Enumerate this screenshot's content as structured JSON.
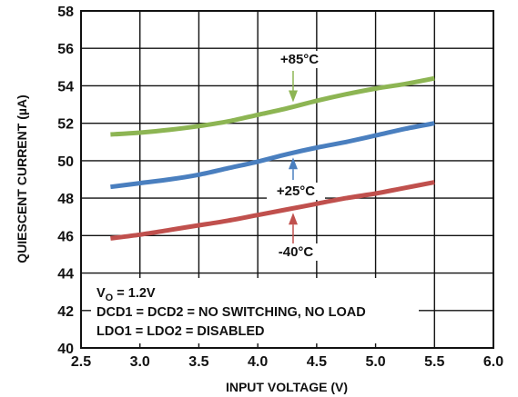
{
  "chart_data": {
    "type": "line",
    "xlabel": "INPUT VOLTAGE (V)",
    "ylabel": "QUIESCENT CURRENT (µA)",
    "xlim": [
      2.5,
      6.0
    ],
    "ylim": [
      40,
      58
    ],
    "x_ticks": [
      "2.5",
      "3.0",
      "3.5",
      "4.0",
      "4.5",
      "5.0",
      "5.5",
      "6.0"
    ],
    "y_ticks": [
      "40",
      "42",
      "44",
      "46",
      "48",
      "50",
      "52",
      "54",
      "56",
      "58"
    ],
    "grid": true,
    "series": [
      {
        "name": "+85°C",
        "color": "#8db553",
        "points": [
          [
            2.75,
            51.4
          ],
          [
            3.0,
            51.5
          ],
          [
            3.25,
            51.65
          ],
          [
            3.5,
            51.85
          ],
          [
            3.75,
            52.1
          ],
          [
            4.0,
            52.45
          ],
          [
            4.25,
            52.8
          ],
          [
            4.5,
            53.2
          ],
          [
            4.75,
            53.55
          ],
          [
            5.0,
            53.85
          ],
          [
            5.25,
            54.1
          ],
          [
            5.5,
            54.4
          ]
        ]
      },
      {
        "name": "+25°C",
        "color": "#4a7fbf",
        "points": [
          [
            2.75,
            48.6
          ],
          [
            3.0,
            48.8
          ],
          [
            3.25,
            49.0
          ],
          [
            3.5,
            49.25
          ],
          [
            3.75,
            49.6
          ],
          [
            4.0,
            49.95
          ],
          [
            4.25,
            50.35
          ],
          [
            4.5,
            50.7
          ],
          [
            4.75,
            51.0
          ],
          [
            5.0,
            51.35
          ],
          [
            5.25,
            51.7
          ],
          [
            5.5,
            52.0
          ]
        ]
      },
      {
        "name": "-40°C",
        "color": "#c0504d",
        "points": [
          [
            2.75,
            45.85
          ],
          [
            3.0,
            46.05
          ],
          [
            3.25,
            46.3
          ],
          [
            3.5,
            46.55
          ],
          [
            3.75,
            46.8
          ],
          [
            4.0,
            47.1
          ],
          [
            4.25,
            47.4
          ],
          [
            4.5,
            47.7
          ],
          [
            4.75,
            48.0
          ],
          [
            5.0,
            48.25
          ],
          [
            5.25,
            48.55
          ],
          [
            5.5,
            48.85
          ]
        ]
      }
    ],
    "notes": [
      {
        "main": "V",
        "sub": "O",
        "rest": " = 1.2V"
      },
      {
        "main": "DCD1 = DCD2 = NO SWITCHING, NO LOAD",
        "sub": "",
        "rest": ""
      },
      {
        "main": "LDO1 = LDO2 = DISABLED",
        "sub": "",
        "rest": ""
      }
    ]
  }
}
